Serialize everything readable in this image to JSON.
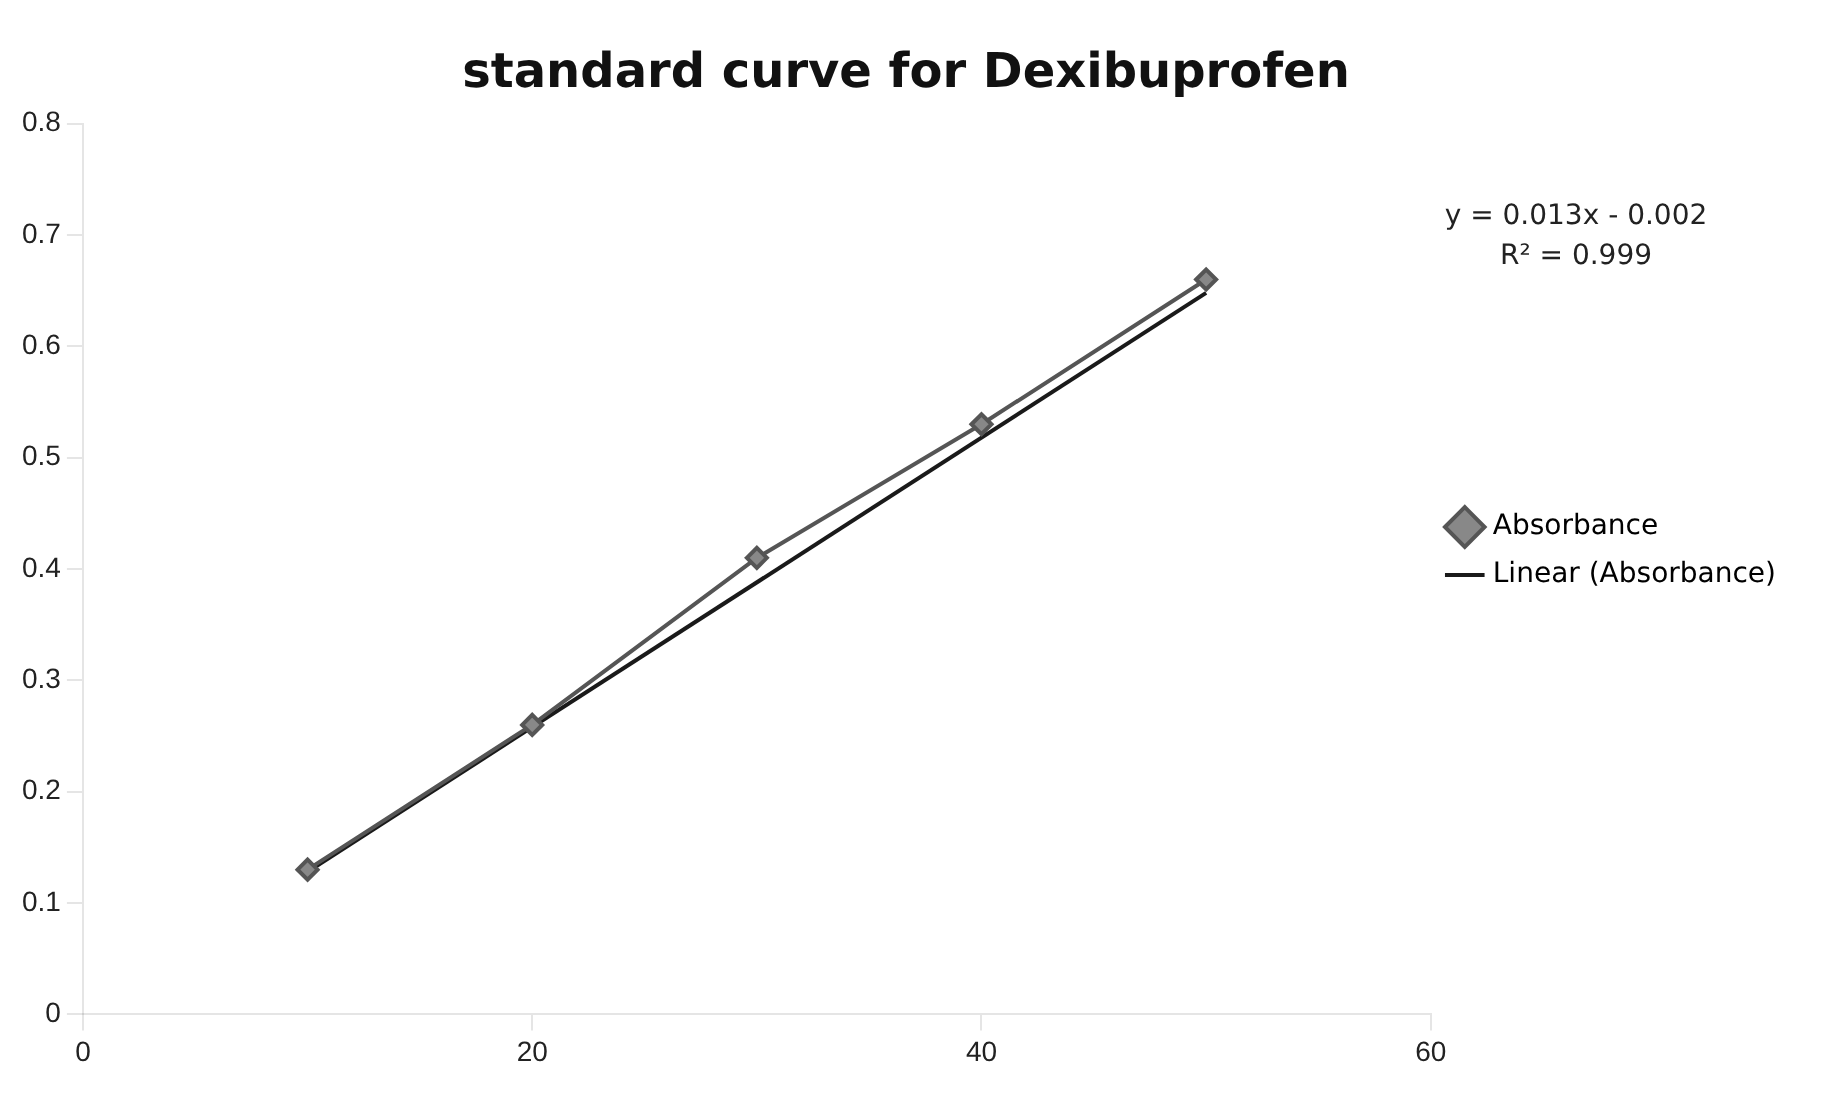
{
  "chart_data": {
    "type": "line",
    "title": "standard curve for Dexibuprofen",
    "x": [
      10,
      20,
      30,
      40,
      50
    ],
    "series": [
      {
        "name": "Absorbance",
        "color": "#555555",
        "values": [
          0.13,
          0.26,
          0.41,
          0.53,
          0.66
        ],
        "marker": "diamond"
      },
      {
        "name": "Linear (Absorbance)",
        "color": "#1a1a1a",
        "type": "line",
        "x": [
          10,
          50
        ],
        "values": [
          0.128,
          0.648
        ],
        "marker": "none"
      }
    ],
    "xlim": [
      0,
      60
    ],
    "xticks": [
      0,
      20,
      40,
      60
    ],
    "ylim": [
      0,
      0.8
    ],
    "yticks": [
      0,
      0.1,
      0.2,
      0.3,
      0.4,
      0.5,
      0.6,
      0.7,
      0.8
    ],
    "annotations": [
      "y = 0.013x - 0.002",
      "R² = 0.999"
    ],
    "grid": false,
    "legend": "right"
  }
}
